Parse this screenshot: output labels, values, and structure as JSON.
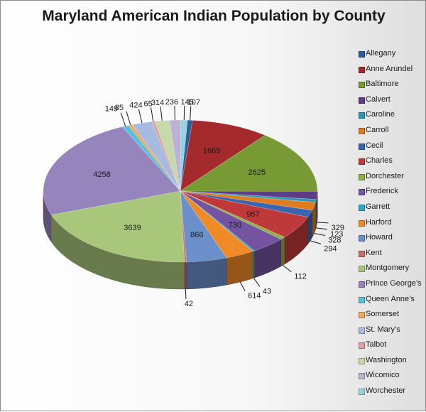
{
  "chart_data": {
    "type": "pie",
    "title": "Maryland American Indian Population by County",
    "legend_position": "right",
    "categories": [
      "Allegany",
      "Anne Arundel",
      "Baltimore",
      "Calvert",
      "Caroline",
      "Carroll",
      "Cecil",
      "Charles",
      "Dorchester",
      "Frederick",
      "Garrett",
      "Harford",
      "Howard",
      "Kent",
      "Montgomery",
      "Prince George’s",
      "Queen Anne’s",
      "Somerset",
      "St. Mary’s",
      "Talbot",
      "Washington",
      "Wicomico",
      "Worchester"
    ],
    "values": [
      107,
      1665,
      2625,
      329,
      123,
      328,
      294,
      957,
      112,
      730,
      43,
      614,
      866,
      42,
      3639,
      4258,
      149,
      85,
      424,
      65,
      314,
      236,
      145
    ],
    "colors": [
      "#2e5d9e",
      "#a42a2c",
      "#779a35",
      "#5e3d86",
      "#2b97b5",
      "#e07b20",
      "#3a66b0",
      "#c0393a",
      "#8fb144",
      "#7454a0",
      "#31a8c8",
      "#f08a26",
      "#6a8fca",
      "#cf6b6b",
      "#a9c77a",
      "#9684bd",
      "#5ebfd8",
      "#f5a760",
      "#a5bbe0",
      "#dfa1a1",
      "#c6d9a8",
      "#bdb1d6",
      "#95d3e3"
    ]
  }
}
